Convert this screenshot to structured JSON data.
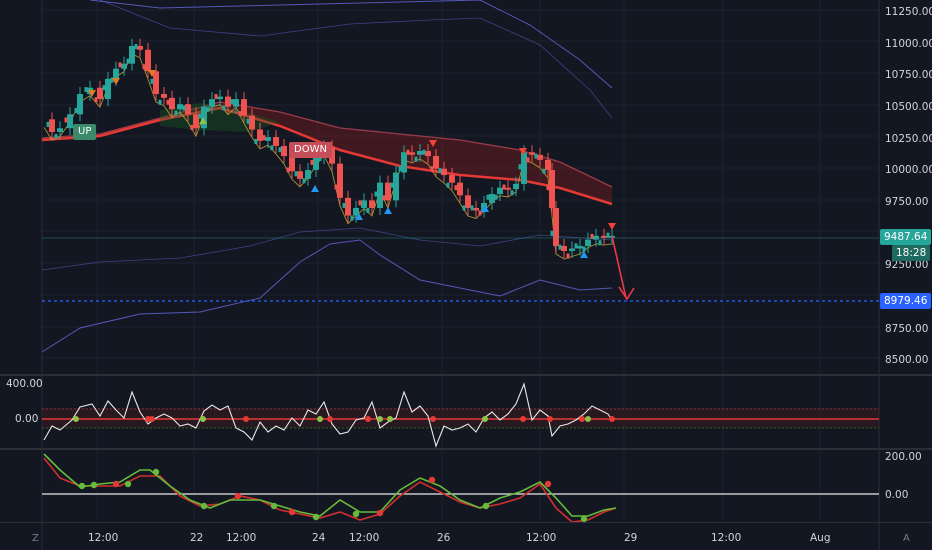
{
  "price_axis": {
    "ticks": [
      "11250.00",
      "11000.00",
      "10750.00",
      "10500.00",
      "10250.00",
      "10000.00",
      "9750.00",
      "9250.00",
      "8750.00",
      "8500.00"
    ],
    "current_price": "9487.64",
    "countdown": "18:28",
    "alert_level": "8979.46",
    "colors": {
      "current": "#26a69a",
      "alert": "#2962ff"
    }
  },
  "osc1_axis": {
    "ticks": [
      "400.00",
      "0.00"
    ]
  },
  "osc1_left": {
    "ticks": [
      "400.00",
      "0.00"
    ]
  },
  "osc2_axis": {
    "ticks": [
      "200.00",
      "0.00"
    ]
  },
  "time_axis": {
    "labels": [
      "12:00",
      "22",
      "12:00",
      "24",
      "12:00",
      "26",
      "12:00",
      "29",
      "12:00",
      "Aug"
    ]
  },
  "chart_labels": {
    "up": "UP",
    "down": "DOWN"
  },
  "corner": {
    "left": "Z",
    "right": "A"
  },
  "colors": {
    "bull": "#26a69a",
    "bear": "#ef5350",
    "ma": "#e53935",
    "bands": "#5c5fc8",
    "signal_up": "#2196f3",
    "signal_down": "#f44336"
  }
}
